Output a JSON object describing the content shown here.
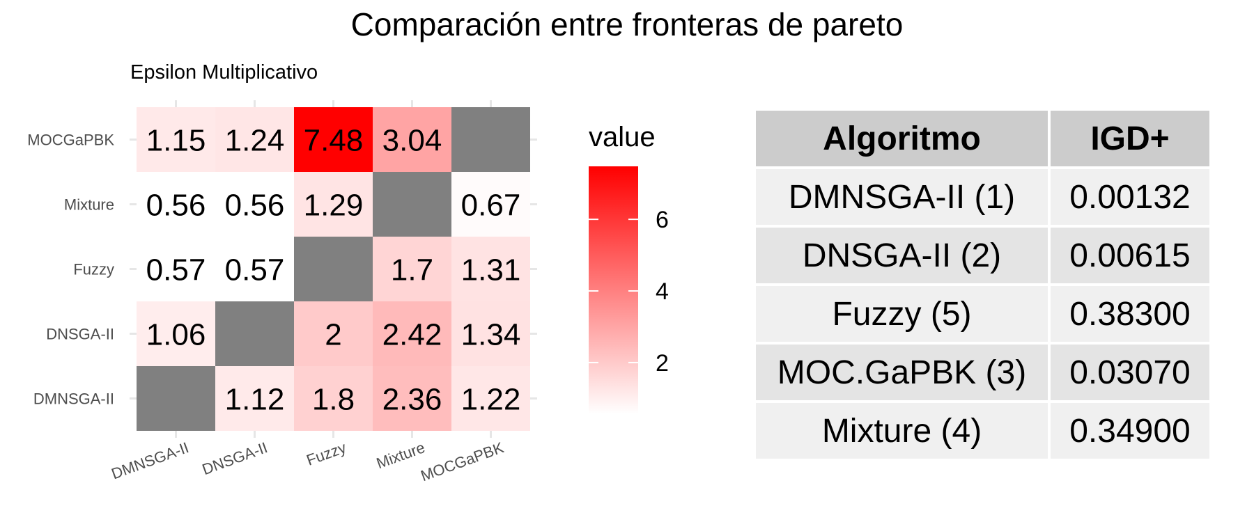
{
  "title": "Comparación entre fronteras de pareto",
  "chart_data": {
    "type": "heatmap",
    "subtitle": "Epsilon Multiplicativo",
    "x_categories": [
      "DMNSGA-II",
      "DNSGA-II",
      "Fuzzy",
      "Mixture",
      "MOCGaPBK"
    ],
    "y_categories": [
      "DMNSGA-II",
      "DNSGA-II",
      "Fuzzy",
      "Mixture",
      "MOCGaPBK"
    ],
    "values": [
      [
        null,
        1.12,
        1.8,
        2.36,
        1.22
      ],
      [
        1.06,
        null,
        2,
        2.42,
        1.34
      ],
      [
        0.57,
        0.57,
        null,
        1.7,
        1.31
      ],
      [
        0.56,
        0.56,
        1.29,
        null,
        0.67
      ],
      [
        1.15,
        1.24,
        7.48,
        3.04,
        null
      ]
    ],
    "na_color": "#808080",
    "color_low": "#ffffff",
    "color_high": "#ff0000",
    "value_range": [
      0.56,
      7.48
    ],
    "legend": {
      "title": "value",
      "ticks": [
        2,
        4,
        6
      ],
      "position": "right"
    }
  },
  "table": {
    "headers": [
      "Algoritmo",
      "IGD+"
    ],
    "rows": [
      [
        "DMNSGA-II (1)",
        "0.00132"
      ],
      [
        "DNSGA-II (2)",
        "0.00615"
      ],
      [
        "Fuzzy (5)",
        "0.38300"
      ],
      [
        "MOC.GaPBK (3)",
        "0.03070"
      ],
      [
        "Mixture (4)",
        "0.34900"
      ]
    ]
  }
}
